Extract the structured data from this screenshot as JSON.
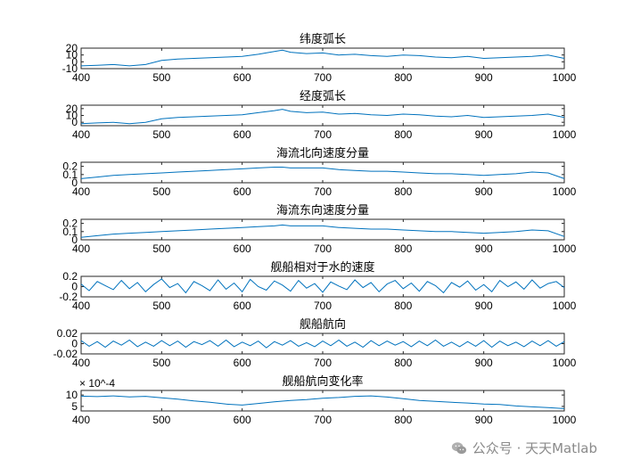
{
  "watermark": {
    "text": "公众号 · 天天Matlab",
    "icon": "wechat-icon",
    "color": "#8a8a8a"
  },
  "line_color": "#0072bd",
  "chart_data": [
    {
      "type": "line",
      "title": "纬度弧长",
      "xlim": [
        400,
        1000
      ],
      "ylim": [
        -10,
        20
      ],
      "xticks": [
        "400",
        "500",
        "600",
        "700",
        "800",
        "900",
        "1000"
      ],
      "yticks": [
        "-10",
        "0",
        "10",
        "20"
      ],
      "series": [
        {
          "x": [
            400,
            420,
            440,
            460,
            480,
            500,
            520,
            540,
            560,
            580,
            600,
            620,
            640,
            650,
            660,
            680,
            700,
            720,
            740,
            760,
            780,
            800,
            820,
            840,
            860,
            880,
            900,
            920,
            940,
            960,
            980,
            1000
          ],
          "y": [
            -6,
            -5,
            -4,
            -6,
            -4,
            2,
            4,
            5,
            6,
            7,
            8,
            11,
            15,
            17,
            14,
            12,
            13,
            10,
            11,
            9,
            8,
            10,
            9,
            7,
            6,
            8,
            5,
            6,
            7,
            8,
            10,
            5
          ]
        }
      ]
    },
    {
      "type": "line",
      "title": "经度弧长",
      "xlim": [
        400,
        1000
      ],
      "ylim": [
        -5,
        25
      ],
      "xticks": [
        "400",
        "500",
        "600",
        "700",
        "800",
        "900",
        "1000"
      ],
      "yticks": [
        "0",
        "10",
        "20"
      ],
      "series": [
        {
          "x": [
            400,
            420,
            440,
            460,
            480,
            500,
            520,
            540,
            560,
            580,
            600,
            620,
            640,
            650,
            660,
            680,
            700,
            720,
            740,
            760,
            780,
            800,
            820,
            840,
            860,
            880,
            900,
            920,
            940,
            960,
            980,
            1000
          ],
          "y": [
            -2,
            -1,
            0,
            -2,
            0,
            5,
            7,
            8,
            9,
            10,
            11,
            14,
            17,
            19,
            16,
            14,
            15,
            12,
            13,
            11,
            10,
            12,
            11,
            9,
            8,
            10,
            7,
            8,
            9,
            10,
            12,
            7
          ]
        }
      ]
    },
    {
      "type": "line",
      "title": "海流北向速度分量",
      "xlim": [
        400,
        1000
      ],
      "ylim": [
        0,
        0.25
      ],
      "xticks": [
        "400",
        "500",
        "600",
        "700",
        "800",
        "900",
        "1000"
      ],
      "yticks": [
        "0",
        "0.1",
        "0.2"
      ],
      "series": [
        {
          "x": [
            400,
            420,
            440,
            460,
            480,
            500,
            520,
            540,
            560,
            580,
            600,
            620,
            640,
            650,
            660,
            680,
            700,
            720,
            740,
            760,
            780,
            800,
            820,
            840,
            860,
            880,
            900,
            920,
            940,
            960,
            980,
            1000
          ],
          "y": [
            0.05,
            0.07,
            0.09,
            0.1,
            0.11,
            0.12,
            0.13,
            0.14,
            0.15,
            0.16,
            0.17,
            0.18,
            0.19,
            0.19,
            0.18,
            0.18,
            0.18,
            0.16,
            0.15,
            0.14,
            0.14,
            0.13,
            0.12,
            0.11,
            0.11,
            0.1,
            0.09,
            0.1,
            0.11,
            0.13,
            0.12,
            0.05
          ]
        }
      ]
    },
    {
      "type": "line",
      "title": "海流东向速度分量",
      "xlim": [
        400,
        1000
      ],
      "ylim": [
        0,
        0.25
      ],
      "xticks": [
        "400",
        "500",
        "600",
        "700",
        "800",
        "900",
        "1000"
      ],
      "yticks": [
        "0",
        "0.1",
        "0.2"
      ],
      "series": [
        {
          "x": [
            400,
            420,
            440,
            460,
            480,
            500,
            520,
            540,
            560,
            580,
            600,
            620,
            640,
            650,
            660,
            680,
            700,
            720,
            740,
            760,
            780,
            800,
            820,
            840,
            860,
            880,
            900,
            920,
            940,
            960,
            980,
            1000
          ],
          "y": [
            0.03,
            0.05,
            0.07,
            0.08,
            0.09,
            0.1,
            0.11,
            0.12,
            0.13,
            0.14,
            0.15,
            0.16,
            0.17,
            0.18,
            0.17,
            0.17,
            0.17,
            0.15,
            0.14,
            0.13,
            0.13,
            0.12,
            0.11,
            0.1,
            0.1,
            0.09,
            0.08,
            0.09,
            0.1,
            0.12,
            0.11,
            0.04
          ]
        }
      ]
    },
    {
      "type": "line",
      "title": "舰船相对于水的速度",
      "xlim": [
        400,
        1000
      ],
      "ylim": [
        -0.2,
        0.2
      ],
      "xticks": [
        "400",
        "500",
        "600",
        "700",
        "800",
        "900",
        "1000"
      ],
      "yticks": [
        "-0.2",
        "0",
        "0.2"
      ],
      "series": [
        {
          "x": [
            400,
            410,
            420,
            430,
            440,
            450,
            460,
            470,
            480,
            490,
            500,
            510,
            520,
            530,
            540,
            550,
            560,
            570,
            580,
            590,
            600,
            610,
            620,
            630,
            640,
            650,
            660,
            670,
            680,
            690,
            700,
            710,
            720,
            730,
            740,
            750,
            760,
            770,
            780,
            790,
            800,
            810,
            820,
            830,
            840,
            850,
            860,
            870,
            880,
            890,
            900,
            910,
            920,
            930,
            940,
            950,
            960,
            970,
            980,
            990,
            1000
          ],
          "y": [
            0.05,
            -0.08,
            0.1,
            0.02,
            -0.06,
            0.12,
            -0.04,
            0.08,
            -0.1,
            0.04,
            0.15,
            -0.02,
            0.06,
            -0.12,
            0.1,
            0.02,
            -0.08,
            0.13,
            -0.05,
            0.07,
            -0.1,
            0.14,
            0.0,
            -0.07,
            0.11,
            0.03,
            -0.09,
            0.12,
            -0.03,
            0.06,
            -0.11,
            0.09,
            0.01,
            -0.06,
            0.13,
            -0.02,
            0.08,
            -0.1,
            0.05,
            0.12,
            -0.04,
            0.07,
            -0.09,
            0.1,
            0.02,
            -0.12,
            0.08,
            -0.01,
            0.11,
            -0.07,
            0.04,
            -0.1,
            0.12,
            0.0,
            0.09,
            -0.05,
            0.13,
            -0.03,
            0.06,
            0.1,
            -0.02
          ]
        }
      ]
    },
    {
      "type": "line",
      "title": "舰船航向",
      "xlim": [
        400,
        1000
      ],
      "ylim": [
        -0.02,
        0.02
      ],
      "xticks": [
        "400",
        "500",
        "600",
        "700",
        "800",
        "900",
        "1000"
      ],
      "yticks": [
        "-0.02",
        "0",
        "0.02"
      ],
      "series": [
        {
          "x": [
            400,
            410,
            420,
            430,
            440,
            450,
            460,
            470,
            480,
            490,
            500,
            510,
            520,
            530,
            540,
            550,
            560,
            570,
            580,
            590,
            600,
            610,
            620,
            630,
            640,
            650,
            660,
            670,
            680,
            690,
            700,
            710,
            720,
            730,
            740,
            750,
            760,
            770,
            780,
            790,
            800,
            810,
            820,
            830,
            840,
            850,
            860,
            870,
            880,
            890,
            900,
            910,
            920,
            930,
            940,
            950,
            960,
            970,
            980,
            990,
            1000
          ],
          "y": [
            0.006,
            -0.005,
            0.004,
            -0.007,
            0.005,
            -0.003,
            0.007,
            -0.006,
            0.003,
            -0.005,
            0.006,
            -0.004,
            0.005,
            -0.007,
            0.004,
            -0.002,
            0.006,
            -0.005,
            0.007,
            -0.006,
            0.003,
            -0.004,
            0.005,
            -0.008,
            0.004,
            -0.003,
            0.006,
            -0.005,
            0.002,
            -0.006,
            0.005,
            -0.004,
            0.007,
            -0.005,
            0.003,
            -0.007,
            0.006,
            -0.004,
            0.005,
            -0.003,
            0.004,
            -0.006,
            0.005,
            -0.004,
            0.007,
            -0.005,
            0.003,
            -0.006,
            0.004,
            -0.005,
            0.006,
            -0.007,
            0.005,
            -0.004,
            0.003,
            -0.006,
            0.005,
            -0.004,
            0.006,
            -0.005,
            0.004
          ]
        }
      ]
    },
    {
      "type": "line",
      "title": "舰船航向变化率",
      "xlim": [
        400,
        1000
      ],
      "ylim": [
        3,
        12
      ],
      "yexponent": "× 10^-4",
      "xticks": [
        "400",
        "500",
        "600",
        "700",
        "800",
        "900",
        "1000"
      ],
      "yticks": [
        "5",
        "10"
      ],
      "series": [
        {
          "x": [
            400,
            420,
            440,
            460,
            480,
            500,
            520,
            540,
            560,
            580,
            600,
            620,
            640,
            660,
            680,
            700,
            720,
            740,
            760,
            780,
            800,
            820,
            840,
            860,
            880,
            900,
            920,
            940,
            960,
            980,
            1000
          ],
          "y": [
            9.5,
            9.3,
            9.6,
            9.2,
            9.4,
            8.8,
            8.2,
            7.4,
            6.8,
            6.0,
            5.6,
            6.3,
            7.0,
            7.6,
            8.0,
            8.6,
            8.9,
            9.4,
            9.6,
            9.1,
            8.4,
            7.6,
            7.2,
            6.8,
            6.5,
            6.0,
            5.8,
            5.2,
            4.8,
            4.5,
            4.0
          ]
        }
      ]
    }
  ]
}
